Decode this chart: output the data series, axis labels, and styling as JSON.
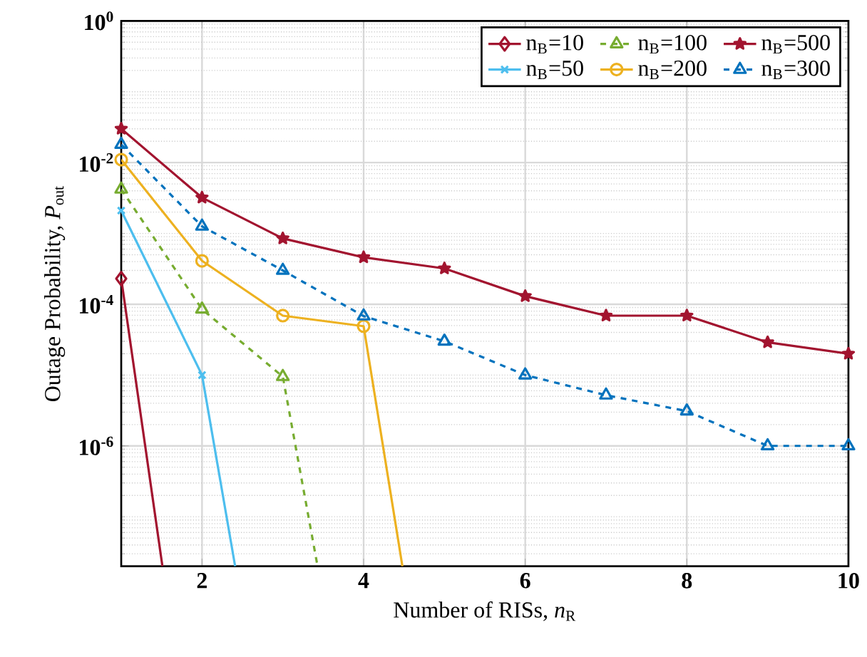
{
  "chart_data": {
    "type": "line",
    "xlabel": "Number of RISs, *n*$_{R}$",
    "ylabel": "Outage Probability, *P*$_{out}$",
    "xlim": [
      1,
      10
    ],
    "xticks": [
      2,
      4,
      6,
      8,
      10
    ],
    "ylim": [
      2e-08,
      1
    ],
    "yticks": [
      {
        "value": 1,
        "label": "10$^{0}$"
      },
      {
        "value": 0.01,
        "label": "10$^{-2}$"
      },
      {
        "value": 0.0001,
        "label": "10$^{-4}$"
      },
      {
        "value": 1e-06,
        "label": "10$^{-6}$"
      }
    ],
    "log": "y",
    "grid": true,
    "legend": "top right",
    "series": [
      {
        "name": "n$_{B}$=10",
        "color": "#a2142f",
        "marker": "diamond",
        "line_style": "solid",
        "x": [
          1,
          1.51
        ],
        "values": [
          0.00023,
          2e-08
        ]
      },
      {
        "name": "n$_{B}$=100",
        "color": "#77ac30",
        "marker": "triangle",
        "line_style": "dashed",
        "x": [
          1,
          2,
          3,
          3.43
        ],
        "values": [
          0.0042,
          8.5e-05,
          9.5e-06,
          2e-08
        ]
      },
      {
        "name": "n$_{B}$=500",
        "color": "#a2142f",
        "marker": "star",
        "line_style": "solid",
        "x": [
          1,
          2,
          3,
          4,
          5,
          6,
          7,
          8,
          9,
          10
        ],
        "values": [
          0.03,
          0.0032,
          0.00085,
          0.00046,
          0.00032,
          0.00013,
          6.9e-05,
          6.9e-05,
          2.9e-05,
          2e-05
        ]
      },
      {
        "name": "n$_{B}$=50",
        "color": "#4dbeee",
        "marker": "cross",
        "line_style": "solid",
        "x": [
          1,
          2,
          2.41
        ],
        "values": [
          0.0021,
          1e-05,
          2e-08
        ]
      },
      {
        "name": "n$_{B}$=200",
        "color": "#edb120",
        "marker": "circle",
        "line_style": "solid",
        "x": [
          1,
          2,
          3,
          4,
          4.48
        ],
        "values": [
          0.011,
          0.00041,
          6.9e-05,
          4.9e-05,
          2e-08
        ]
      },
      {
        "name": "n$_{B}$=300",
        "color": "#0072bd",
        "marker": "triangle",
        "line_style": "dashed",
        "x": [
          1,
          2,
          3,
          4,
          5,
          6,
          7,
          8,
          9,
          10
        ],
        "values": [
          0.018,
          0.00126,
          0.0003,
          6.8e-05,
          3e-05,
          1e-05,
          5.2e-06,
          3.1e-06,
          1e-06,
          1e-06
        ]
      }
    ]
  }
}
